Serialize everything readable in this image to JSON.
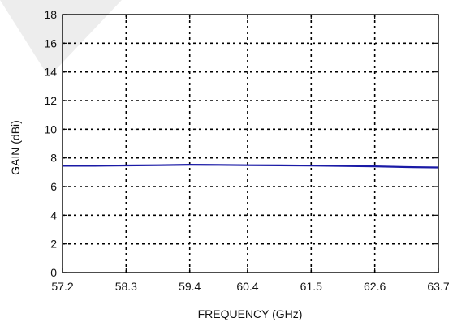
{
  "chart_data": {
    "type": "line",
    "xlabel": "FREQUENCY (GHz)",
    "ylabel": "GAIN (dBi)",
    "x_tick_labels": [
      "57.2",
      "58.3",
      "59.4",
      "60.4",
      "61.5",
      "62.6",
      "63.7"
    ],
    "y_tick_labels": [
      "0",
      "2",
      "4",
      "6",
      "8",
      "10",
      "12",
      "14",
      "16",
      "18"
    ],
    "xlim": [
      57.2,
      63.7
    ],
    "ylim": [
      0,
      18
    ],
    "grid": true,
    "series": [
      {
        "color": "#1a1aa6",
        "x": [
          57.2,
          57.75,
          58.3,
          58.85,
          59.4,
          59.9,
          60.4,
          60.95,
          61.5,
          62.05,
          62.6,
          63.15,
          63.7
        ],
        "y": [
          7.45,
          7.45,
          7.47,
          7.49,
          7.52,
          7.51,
          7.49,
          7.48,
          7.46,
          7.44,
          7.41,
          7.36,
          7.33
        ]
      }
    ]
  }
}
